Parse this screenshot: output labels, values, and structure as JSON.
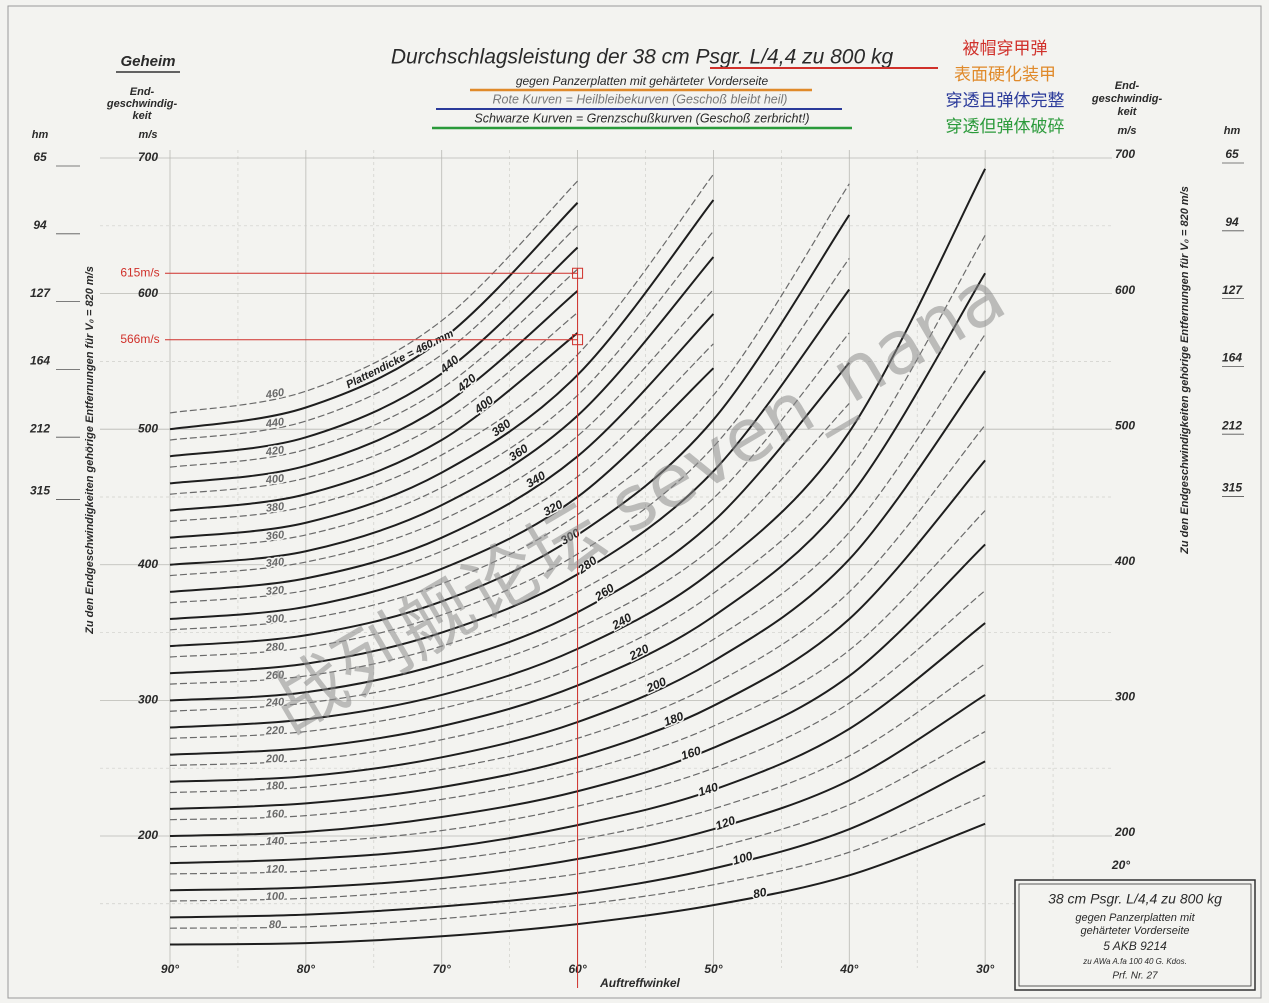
{
  "chart_data": {
    "type": "line",
    "classification": "Geheim",
    "title": "Durchschlagsleistung der 38 cm Psgr. L/4,4 zu 800 kg",
    "subtitle": [
      "gegen Panzerplatten mit gehärteter Vorderseite",
      "Rote Kurven = Heilbleibekurven (Geschoß bleibt heil)",
      "Schwarze Kurven = Grenzschußkurven (Geschoß zerbricht!)"
    ],
    "notes": [
      {
        "text": "被帽穿甲弹",
        "color": "#d0302a"
      },
      {
        "text": "表面硬化装甲",
        "color": "#e08a2a"
      },
      {
        "text": "穿透且弹体完整",
        "color": "#2a3a9a"
      },
      {
        "text": "穿透但弹体破碎",
        "color": "#2a9a3a"
      }
    ],
    "y_axis_label": [
      "End-",
      "geschwindig-",
      "keit"
    ],
    "y_unit": "m/s",
    "range_unit": "hm",
    "range_axis_label": "Zu den Endgeschwindigkeiten gehörige Entfernungen für V₀ = 820 m/s",
    "x_axis_label": "Auftreffwinkel",
    "xlim": [
      90,
      20
    ],
    "ylim": [
      110,
      700
    ],
    "xticks": [
      {
        "value": 90,
        "label": "90°"
      },
      {
        "value": 80,
        "label": "80°"
      },
      {
        "value": 70,
        "label": "70°"
      },
      {
        "value": 60,
        "label": "60°"
      },
      {
        "value": 50,
        "label": "50°"
      },
      {
        "value": 40,
        "label": "40°"
      },
      {
        "value": 30,
        "label": "30°"
      }
    ],
    "corner_tick": {
      "value": 20,
      "label": "20°"
    },
    "x_minor_ticks": [
      85,
      75,
      65,
      55,
      45,
      35,
      25
    ],
    "yticks": [
      700,
      600,
      500,
      400,
      300,
      200
    ],
    "y_minor_ticks": [
      650,
      550,
      450,
      350,
      250,
      150
    ],
    "range_ticks": [
      {
        "value": 700,
        "label": "65"
      },
      {
        "value": 650,
        "label": "94"
      },
      {
        "value": 600,
        "label": "127"
      },
      {
        "value": 550,
        "label": "164"
      },
      {
        "value": 500,
        "label": "212"
      },
      {
        "value": 454,
        "label": "315"
      }
    ],
    "grid": true,
    "x": [
      90,
      80,
      70,
      60,
      50,
      40,
      30
    ],
    "series": [
      {
        "name": "Plattendicke = 460 mm",
        "color": "#1e1e1e",
        "dashed": false,
        "values": [
          500,
          516,
          566,
          667,
          null,
          null,
          null
        ]
      },
      {
        "name": "440",
        "color": "#1e1e1e",
        "dashed": false,
        "values": [
          480,
          494,
          541,
          634,
          null,
          null,
          null
        ]
      },
      {
        "name": "420",
        "color": "#1e1e1e",
        "dashed": false,
        "values": [
          460,
          473,
          517,
          602,
          null,
          null,
          null
        ]
      },
      {
        "name": "400",
        "color": "#1e1e1e",
        "dashed": false,
        "values": [
          440,
          452,
          492,
          571,
          null,
          null,
          null
        ]
      },
      {
        "name": "380",
        "color": "#1e1e1e",
        "dashed": false,
        "values": [
          420,
          431,
          468,
          540,
          669,
          null,
          null
        ]
      },
      {
        "name": "360",
        "color": "#1e1e1e",
        "dashed": false,
        "values": [
          400,
          410,
          444,
          510,
          627,
          null,
          null
        ]
      },
      {
        "name": "340",
        "color": "#1e1e1e",
        "dashed": false,
        "values": [
          380,
          390,
          420,
          480,
          585,
          null,
          null
        ]
      },
      {
        "name": "320",
        "color": "#1e1e1e",
        "dashed": false,
        "values": [
          360,
          369,
          397,
          450,
          545,
          null,
          null
        ]
      },
      {
        "name": "300",
        "color": "#1e1e1e",
        "dashed": false,
        "values": [
          340,
          348,
          373,
          422,
          507,
          658,
          null
        ]
      },
      {
        "name": "280",
        "color": "#1e1e1e",
        "dashed": false,
        "values": [
          320,
          327,
          350,
          393,
          469,
          603,
          null
        ]
      },
      {
        "name": "260",
        "color": "#1e1e1e",
        "dashed": false,
        "values": [
          300,
          306,
          327,
          365,
          432,
          549,
          null
        ]
      },
      {
        "name": "240",
        "color": "#1e1e1e",
        "dashed": false,
        "values": [
          280,
          286,
          304,
          338,
          396,
          498,
          692
        ]
      },
      {
        "name": "220",
        "color": "#1e1e1e",
        "dashed": false,
        "values": [
          260,
          265,
          281,
          311,
          362,
          450,
          615
        ]
      },
      {
        "name": "200",
        "color": "#1e1e1e",
        "dashed": false,
        "values": [
          240,
          244,
          258,
          284,
          329,
          404,
          543
        ]
      },
      {
        "name": "180",
        "color": "#1e1e1e",
        "dashed": false,
        "values": [
          220,
          224,
          236,
          258,
          296,
          360,
          477
        ]
      },
      {
        "name": "160",
        "color": "#1e1e1e",
        "dashed": false,
        "values": [
          200,
          203,
          214,
          233,
          265,
          318,
          415
        ]
      },
      {
        "name": "140",
        "color": "#1e1e1e",
        "dashed": false,
        "values": [
          180,
          183,
          191,
          208,
          234,
          279,
          357
        ]
      },
      {
        "name": "120",
        "color": "#1e1e1e",
        "dashed": false,
        "values": [
          160,
          162,
          169,
          183,
          205,
          241,
          304
        ]
      },
      {
        "name": "100",
        "color": "#1e1e1e",
        "dashed": false,
        "values": [
          140,
          142,
          148,
          158,
          176,
          205,
          255
        ]
      },
      {
        "name": "80",
        "color": "#1e1e1e",
        "dashed": false,
        "values": [
          120,
          121,
          126,
          135,
          149,
          171,
          209
        ]
      },
      {
        "name": "460",
        "color": "#6a6a6a",
        "dashed": true,
        "values": [
          512,
          528,
          580,
          683,
          null,
          null,
          null
        ]
      },
      {
        "name": "440",
        "color": "#6a6a6a",
        "dashed": true,
        "values": [
          492,
          506,
          555,
          650,
          null,
          null,
          null
        ]
      },
      {
        "name": "420",
        "color": "#6a6a6a",
        "dashed": true,
        "values": [
          472,
          485,
          530,
          618,
          null,
          null,
          null
        ]
      },
      {
        "name": "400",
        "color": "#6a6a6a",
        "dashed": true,
        "values": [
          452,
          464,
          505,
          586,
          null,
          null,
          null
        ]
      },
      {
        "name": "380",
        "color": "#6a6a6a",
        "dashed": true,
        "values": [
          432,
          443,
          481,
          555,
          688,
          null,
          null
        ]
      },
      {
        "name": "360",
        "color": "#6a6a6a",
        "dashed": true,
        "values": [
          412,
          422,
          457,
          525,
          646,
          null,
          null
        ]
      },
      {
        "name": "340",
        "color": "#6a6a6a",
        "dashed": true,
        "values": [
          392,
          402,
          433,
          495,
          603,
          null,
          null
        ]
      },
      {
        "name": "320",
        "color": "#6a6a6a",
        "dashed": true,
        "values": [
          372,
          381,
          410,
          465,
          563,
          null,
          null
        ]
      },
      {
        "name": "300",
        "color": "#6a6a6a",
        "dashed": true,
        "values": [
          352,
          360,
          386,
          437,
          525,
          681,
          null
        ]
      },
      {
        "name": "280",
        "color": "#6a6a6a",
        "dashed": true,
        "values": [
          332,
          339,
          363,
          408,
          487,
          626,
          null
        ]
      },
      {
        "name": "260",
        "color": "#6a6a6a",
        "dashed": true,
        "values": [
          312,
          318,
          340,
          380,
          449,
          571,
          null
        ]
      },
      {
        "name": "240",
        "color": "#6a6a6a",
        "dashed": true,
        "values": [
          292,
          298,
          317,
          353,
          413,
          519,
          null
        ]
      },
      {
        "name": "220",
        "color": "#6a6a6a",
        "dashed": true,
        "values": [
          272,
          277,
          294,
          325,
          379,
          471,
          643
        ]
      },
      {
        "name": "200",
        "color": "#6a6a6a",
        "dashed": true,
        "values": [
          252,
          256,
          271,
          298,
          345,
          424,
          570
        ]
      },
      {
        "name": "180",
        "color": "#6a6a6a",
        "dashed": true,
        "values": [
          232,
          236,
          249,
          272,
          312,
          380,
          503
        ]
      },
      {
        "name": "160",
        "color": "#6a6a6a",
        "dashed": true,
        "values": [
          212,
          215,
          227,
          247,
          281,
          337,
          440
        ]
      },
      {
        "name": "140",
        "color": "#6a6a6a",
        "dashed": true,
        "values": [
          192,
          195,
          204,
          222,
          250,
          298,
          381
        ]
      },
      {
        "name": "120",
        "color": "#6a6a6a",
        "dashed": true,
        "values": [
          172,
          174,
          182,
          197,
          220,
          259,
          327
        ]
      },
      {
        "name": "100",
        "color": "#6a6a6a",
        "dashed": true,
        "values": [
          152,
          154,
          161,
          172,
          191,
          223,
          277
        ]
      },
      {
        "name": "80",
        "color": "#6a6a6a",
        "dashed": true,
        "values": [
          132,
          133,
          139,
          149,
          164,
          188,
          230
        ]
      }
    ],
    "annotations": [
      {
        "value": 615,
        "label": "615m/s",
        "color": "#d0302a"
      },
      {
        "value": 566,
        "label": "566m/s",
        "color": "#d0302a"
      }
    ],
    "marker_angle": 60,
    "stamp": [
      "38 cm Psgr. L/4,4 zu 800 kg",
      "gegen Panzerplatten mit",
      "gehärteter Vorderseite",
      "5 AKB 9214",
      "zu AWa A.fa 100 40 G. Kdos.",
      "Prf. Nr. 27"
    ],
    "watermark": "战列舰论坛 seven_nana"
  }
}
